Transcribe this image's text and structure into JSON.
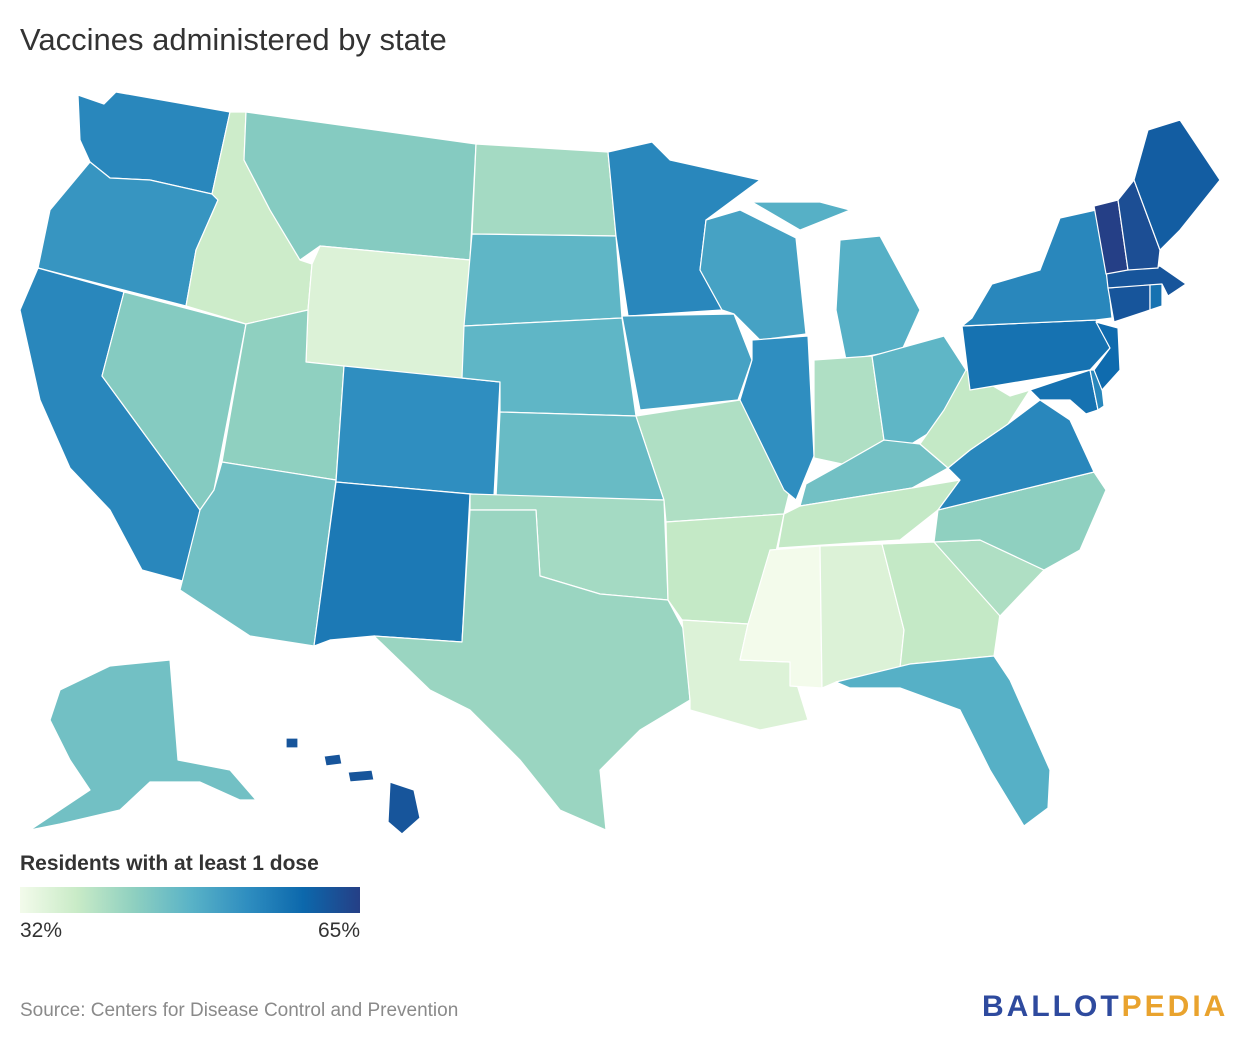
{
  "title": "Vaccines administered by state",
  "legend": {
    "title": "Residents with at least 1 dose",
    "min_label": "32%",
    "max_label": "65%",
    "min": 32,
    "max": 65,
    "colors": [
      "#f3fbeb",
      "#c9ebc7",
      "#8fd0c0",
      "#5ab3c7",
      "#2f8ec0",
      "#0c68ac",
      "#253f86"
    ]
  },
  "source": "Source: Centers for Disease Control and Prevention",
  "brand": {
    "part1": "BALLOT",
    "part2": "PEDIA",
    "color1": "#2e4a9e",
    "color2": "#e9a32e"
  },
  "states": [
    {
      "id": "WA",
      "value": 55
    },
    {
      "id": "OR",
      "value": 53
    },
    {
      "id": "CA",
      "value": 55
    },
    {
      "id": "NV",
      "value": 44
    },
    {
      "id": "ID",
      "value": 37
    },
    {
      "id": "MT",
      "value": 44
    },
    {
      "id": "WY",
      "value": 35
    },
    {
      "id": "UT",
      "value": 43
    },
    {
      "id": "AZ",
      "value": 46
    },
    {
      "id": "CO",
      "value": 54
    },
    {
      "id": "NM",
      "value": 57
    },
    {
      "id": "ND",
      "value": 41
    },
    {
      "id": "SD",
      "value": 48
    },
    {
      "id": "NE",
      "value": 48
    },
    {
      "id": "KS",
      "value": 47
    },
    {
      "id": "OK",
      "value": 41
    },
    {
      "id": "TX",
      "value": 42
    },
    {
      "id": "MN",
      "value": 55
    },
    {
      "id": "IA",
      "value": 51
    },
    {
      "id": "MO",
      "value": 40
    },
    {
      "id": "AR",
      "value": 38
    },
    {
      "id": "LA",
      "value": 35
    },
    {
      "id": "WI",
      "value": 51
    },
    {
      "id": "IL",
      "value": 54
    },
    {
      "id": "MI",
      "value": 49
    },
    {
      "id": "IN",
      "value": 40
    },
    {
      "id": "OH",
      "value": 48
    },
    {
      "id": "KY",
      "value": 46
    },
    {
      "id": "TN",
      "value": 38
    },
    {
      "id": "MS",
      "value": 32
    },
    {
      "id": "AL",
      "value": 35
    },
    {
      "id": "GA",
      "value": 38
    },
    {
      "id": "FL",
      "value": 49
    },
    {
      "id": "SC",
      "value": 40
    },
    {
      "id": "NC",
      "value": 43
    },
    {
      "id": "VA",
      "value": 55
    },
    {
      "id": "WV",
      "value": 38
    },
    {
      "id": "PA",
      "value": 58
    },
    {
      "id": "NY",
      "value": 55
    },
    {
      "id": "MD",
      "value": 58
    },
    {
      "id": "DE",
      "value": 55
    },
    {
      "id": "NJ",
      "value": 59
    },
    {
      "id": "CT",
      "value": 62
    },
    {
      "id": "RI",
      "value": 58
    },
    {
      "id": "MA",
      "value": 62
    },
    {
      "id": "VT",
      "value": 65
    },
    {
      "id": "NH",
      "value": 63
    },
    {
      "id": "ME",
      "value": 61
    },
    {
      "id": "AK",
      "value": 46
    },
    {
      "id": "HI",
      "value": 62
    }
  ]
}
